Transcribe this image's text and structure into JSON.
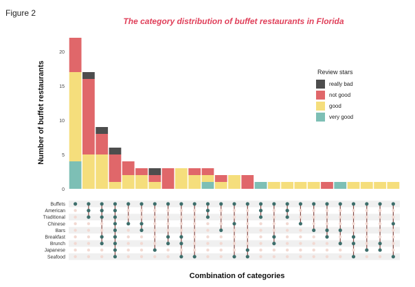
{
  "figure_label": "Figure 2",
  "chart_data": {
    "type": "bar",
    "title": "The category distribution of buffet restaurants in Florida",
    "xlabel": "Combination of categories",
    "ylabel": "Number of buffet restaurants",
    "ylim": [
      0,
      22
    ],
    "yticks": [
      0,
      5,
      10,
      15,
      20
    ],
    "stacked": true,
    "legend": {
      "title": "Review stars",
      "placement": "right",
      "entries": [
        "really bad",
        "not good",
        "good",
        "very good"
      ]
    },
    "series": [
      {
        "name": "very good",
        "color": "#7dbfb5",
        "values": [
          4,
          0,
          0,
          0,
          0,
          0,
          0,
          0,
          0,
          0,
          1,
          0,
          0,
          0,
          1,
          0,
          0,
          0,
          0,
          0,
          1,
          0,
          0,
          0,
          0
        ]
      },
      {
        "name": "good",
        "color": "#f5de7c",
        "values": [
          13,
          5,
          5,
          1,
          2,
          2,
          1,
          0,
          3,
          2,
          1,
          1,
          2,
          0,
          0,
          1,
          1,
          1,
          1,
          0,
          0,
          1,
          1,
          1,
          1
        ]
      },
      {
        "name": "not good",
        "color": "#e0676a",
        "values": [
          5,
          11,
          3,
          4,
          2,
          1,
          1,
          3,
          0,
          1,
          1,
          1,
          0,
          2,
          0,
          0,
          0,
          0,
          0,
          1,
          0,
          0,
          0,
          0,
          0
        ]
      },
      {
        "name": "really bad",
        "color": "#4d4d4d",
        "values": [
          0,
          1,
          1,
          1,
          0,
          0,
          1,
          0,
          0,
          0,
          0,
          0,
          0,
          0,
          0,
          0,
          0,
          0,
          0,
          0,
          0,
          0,
          0,
          0,
          0
        ]
      }
    ],
    "sets": [
      "Buffets",
      "American",
      "Traditional",
      "Chinese",
      "Bars",
      "Breakfast",
      "Brunch",
      "Japanese",
      "Seafood"
    ],
    "combinations": [
      [
        0
      ],
      [
        0,
        1,
        2
      ],
      [
        0,
        1,
        2,
        5,
        6
      ],
      [
        0,
        1,
        2,
        3,
        4,
        5,
        6,
        7,
        8
      ],
      [
        0,
        3
      ],
      [
        0,
        3,
        4
      ],
      [
        0,
        7
      ],
      [
        0,
        5,
        6
      ],
      [
        0,
        5,
        6,
        8
      ],
      [
        0,
        8
      ],
      [
        0,
        1,
        2
      ],
      [
        0,
        4
      ],
      [
        0,
        3,
        8
      ],
      [
        0,
        7,
        8
      ],
      [
        0,
        1,
        2
      ],
      [
        0,
        5,
        6
      ],
      [
        0,
        1,
        2
      ],
      [
        0,
        3
      ],
      [
        0,
        4
      ],
      [
        0,
        4,
        5
      ],
      [
        0,
        4,
        6
      ],
      [
        0,
        5,
        6,
        8
      ],
      [
        0,
        7
      ],
      [
        0,
        6,
        7
      ],
      [
        0,
        3,
        8
      ]
    ],
    "matrix_colors": {
      "active": "#3d6e6b",
      "inactive": "#f2d9d2",
      "stripe": "#f0f0f0",
      "line": "#8a4b45"
    }
  }
}
